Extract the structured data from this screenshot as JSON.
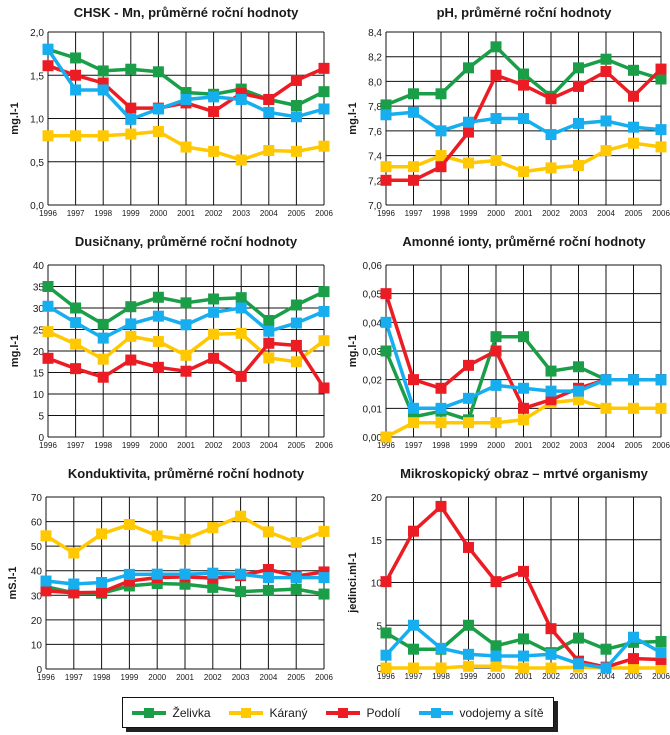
{
  "legend": [
    {
      "name": "Želivka",
      "color": "#1a9e48"
    },
    {
      "name": "Káraný",
      "color": "#ffc800"
    },
    {
      "name": "Podolí",
      "color": "#ec1c24"
    },
    {
      "name": "vodojemy a sítě",
      "color": "#16aeef"
    }
  ],
  "chart_data": [
    {
      "type": "line",
      "title": "CHSK - Mn, průměrné roční hodnoty",
      "xlabel": "",
      "ylabel": "mg.l-1",
      "x": [
        "1996",
        "1997",
        "1998",
        "1999",
        "2000",
        "2001",
        "2002",
        "2003",
        "2004",
        "2005",
        "2006"
      ],
      "ylim": [
        0,
        2
      ],
      "yticks": [
        "0,0",
        "0,5",
        "1,0",
        "1,5",
        "2,0"
      ],
      "ytick_values": [
        0,
        0.5,
        1.0,
        1.5,
        2.0
      ],
      "grid": true,
      "series": [
        {
          "name": "Želivka",
          "values": [
            1.8,
            1.7,
            1.55,
            1.57,
            1.54,
            1.3,
            1.28,
            1.34,
            1.22,
            1.15,
            1.31
          ]
        },
        {
          "name": "Káraný",
          "values": [
            0.8,
            0.8,
            0.8,
            0.82,
            0.85,
            0.67,
            0.62,
            0.52,
            0.63,
            0.62,
            0.68
          ]
        },
        {
          "name": "Podolí",
          "values": [
            1.61,
            1.5,
            1.41,
            1.12,
            1.12,
            1.18,
            1.08,
            1.29,
            1.22,
            1.44,
            1.58
          ]
        },
        {
          "name": "vodojemy a sítě",
          "values": [
            1.8,
            1.33,
            1.33,
            0.99,
            1.11,
            1.22,
            1.25,
            1.22,
            1.07,
            1.02,
            1.11
          ]
        }
      ]
    },
    {
      "type": "line",
      "title": "pH, průměrné roční hodnoty",
      "xlabel": "",
      "ylabel": "mg.l-1",
      "x": [
        "1996",
        "1997",
        "1998",
        "1999",
        "2000",
        "2001",
        "2002",
        "2003",
        "2004",
        "2005",
        "2006"
      ],
      "ylim": [
        7.0,
        8.4
      ],
      "yticks": [
        "7,0",
        "7,2",
        "7,4",
        "7,6",
        "7,8",
        "8,0",
        "8,2",
        "8,4"
      ],
      "ytick_values": [
        7.0,
        7.2,
        7.4,
        7.6,
        7.8,
        8.0,
        8.2,
        8.4
      ],
      "grid": true,
      "series": [
        {
          "name": "Želivka",
          "values": [
            7.81,
            7.9,
            7.9,
            8.11,
            8.28,
            8.06,
            7.88,
            8.11,
            8.18,
            8.09,
            8.02
          ]
        },
        {
          "name": "Káraný",
          "values": [
            7.31,
            7.31,
            7.4,
            7.34,
            7.36,
            7.27,
            7.3,
            7.32,
            7.44,
            7.5,
            7.47
          ]
        },
        {
          "name": "Podolí",
          "values": [
            7.2,
            7.2,
            7.31,
            7.59,
            8.05,
            7.97,
            7.86,
            7.96,
            8.08,
            7.88,
            8.1
          ]
        },
        {
          "name": "vodojemy a sítě",
          "values": [
            7.73,
            7.75,
            7.6,
            7.67,
            7.7,
            7.7,
            7.57,
            7.66,
            7.68,
            7.63,
            7.61
          ]
        }
      ]
    },
    {
      "type": "line",
      "title": "Dusičnany, průměrné roční hodnoty",
      "xlabel": "",
      "ylabel": "mg.l-1",
      "x": [
        "1996",
        "1997",
        "1998",
        "1999",
        "2000",
        "2001",
        "2002",
        "2003",
        "2004",
        "2005",
        "2006"
      ],
      "ylim": [
        0,
        40
      ],
      "yticks": [
        "0",
        "5",
        "10",
        "15",
        "20",
        "25",
        "30",
        "35",
        "40"
      ],
      "ytick_values": [
        0,
        5,
        10,
        15,
        20,
        25,
        30,
        35,
        40
      ],
      "grid": true,
      "series": [
        {
          "name": "Želivka",
          "values": [
            35.0,
            30.0,
            26.2,
            30.3,
            32.5,
            31.2,
            32.1,
            32.4,
            27.1,
            30.7,
            33.8
          ]
        },
        {
          "name": "Káraný",
          "values": [
            24.5,
            21.6,
            18.1,
            23.4,
            22.2,
            19.0,
            23.9,
            24.1,
            18.4,
            17.5,
            22.4
          ]
        },
        {
          "name": "Podolí",
          "values": [
            18.3,
            15.9,
            13.9,
            17.9,
            16.2,
            15.3,
            18.3,
            14.1,
            21.8,
            21.3,
            11.4
          ]
        },
        {
          "name": "vodojemy a sítě",
          "values": [
            30.4,
            26.6,
            23.0,
            26.3,
            28.1,
            26.1,
            29.0,
            30.0,
            24.6,
            26.5,
            29.2
          ]
        }
      ]
    },
    {
      "type": "line",
      "title": "Amonné ionty, průměrné roční hodnoty",
      "xlabel": "",
      "ylabel": "mg.l-1",
      "x": [
        "1996",
        "1997",
        "1998",
        "1999",
        "2000",
        "2001",
        "2002",
        "2003",
        "2004",
        "2005",
        "2006"
      ],
      "ylim": [
        0,
        0.06
      ],
      "yticks": [
        "0,00",
        "0,01",
        "0,02",
        "0,03",
        "0,04",
        "0,05",
        "0,06"
      ],
      "ytick_values": [
        0,
        0.01,
        0.02,
        0.03,
        0.04,
        0.05,
        0.06
      ],
      "grid": true,
      "series": [
        {
          "name": "Želivka",
          "values": [
            0.03,
            0.007,
            0.009,
            0.006,
            0.035,
            0.035,
            0.023,
            0.0245,
            0.02,
            0.02,
            0.02
          ]
        },
        {
          "name": "Káraný",
          "values": [
            0.0,
            0.005,
            0.005,
            0.005,
            0.005,
            0.006,
            0.012,
            0.013,
            0.01,
            0.01,
            0.01
          ]
        },
        {
          "name": "Podolí",
          "values": [
            0.05,
            0.02,
            0.017,
            0.025,
            0.03,
            0.01,
            0.013,
            0.017,
            0.02,
            0.02,
            0.02
          ]
        },
        {
          "name": "vodojemy a sítě",
          "values": [
            0.04,
            0.01,
            0.01,
            0.0135,
            0.018,
            0.017,
            0.016,
            0.016,
            0.02,
            0.02,
            0.02
          ]
        }
      ]
    },
    {
      "type": "line",
      "title": "Konduktivita, průměrné roční hodnoty",
      "xlabel": "",
      "ylabel": "mS.l-1",
      "x": [
        "1996",
        "1997",
        "1998",
        "1999",
        "2000",
        "2001",
        "2002",
        "2003",
        "2004",
        "2005",
        "2006"
      ],
      "ylim": [
        0,
        70
      ],
      "yticks": [
        "0",
        "10",
        "20",
        "30",
        "40",
        "50",
        "60",
        "70"
      ],
      "ytick_values": [
        0,
        10,
        20,
        30,
        40,
        50,
        60,
        70
      ],
      "grid": true,
      "series": [
        {
          "name": "Želivka",
          "values": [
            33.5,
            31.0,
            30.8,
            33.8,
            34.8,
            34.5,
            33.2,
            31.5,
            32.0,
            32.5,
            30.5
          ]
        },
        {
          "name": "Káraný",
          "values": [
            54.2,
            47.2,
            55.0,
            58.8,
            54.2,
            52.8,
            57.5,
            62.2,
            55.8,
            51.5,
            56.0
          ]
        },
        {
          "name": "Podolí",
          "values": [
            31.8,
            31.0,
            31.2,
            35.8,
            37.2,
            37.5,
            37.0,
            38.0,
            40.5,
            37.8,
            39.5
          ]
        },
        {
          "name": "vodojemy a sítě",
          "values": [
            35.8,
            34.6,
            35.2,
            38.5,
            38.6,
            38.6,
            39.0,
            38.6,
            37.2,
            37.2,
            37.2
          ]
        }
      ]
    },
    {
      "type": "line",
      "title": "Mikroskopický obraz – mrtvé organismy",
      "xlabel": "",
      "ylabel": "jedinci.ml-1",
      "x": [
        "1996",
        "1997",
        "1998",
        "1999",
        "2000",
        "2001",
        "2002",
        "2003",
        "2004",
        "2005",
        "2006"
      ],
      "ylim": [
        0,
        20
      ],
      "yticks": [
        "0",
        "5",
        "10",
        "15",
        "20"
      ],
      "ytick_values": [
        0,
        5,
        10,
        15,
        20
      ],
      "grid": true,
      "series": [
        {
          "name": "Želivka",
          "values": [
            4.1,
            2.2,
            2.2,
            5.0,
            2.6,
            3.4,
            1.8,
            3.5,
            2.2,
            3.0,
            3.1
          ]
        },
        {
          "name": "Káraný",
          "values": [
            0.0,
            0.0,
            0.0,
            0.2,
            0.2,
            0.0,
            0.0,
            0.1,
            0.0,
            0.0,
            0.0
          ]
        },
        {
          "name": "Podolí",
          "values": [
            10.1,
            16.0,
            18.9,
            14.1,
            10.1,
            11.3,
            4.6,
            0.8,
            0.1,
            1.1,
            1.0
          ]
        },
        {
          "name": "vodojemy a sítě",
          "values": [
            1.5,
            5.0,
            2.3,
            1.6,
            1.4,
            1.4,
            1.6,
            0.5,
            0.0,
            3.6,
            1.8
          ]
        }
      ]
    }
  ]
}
